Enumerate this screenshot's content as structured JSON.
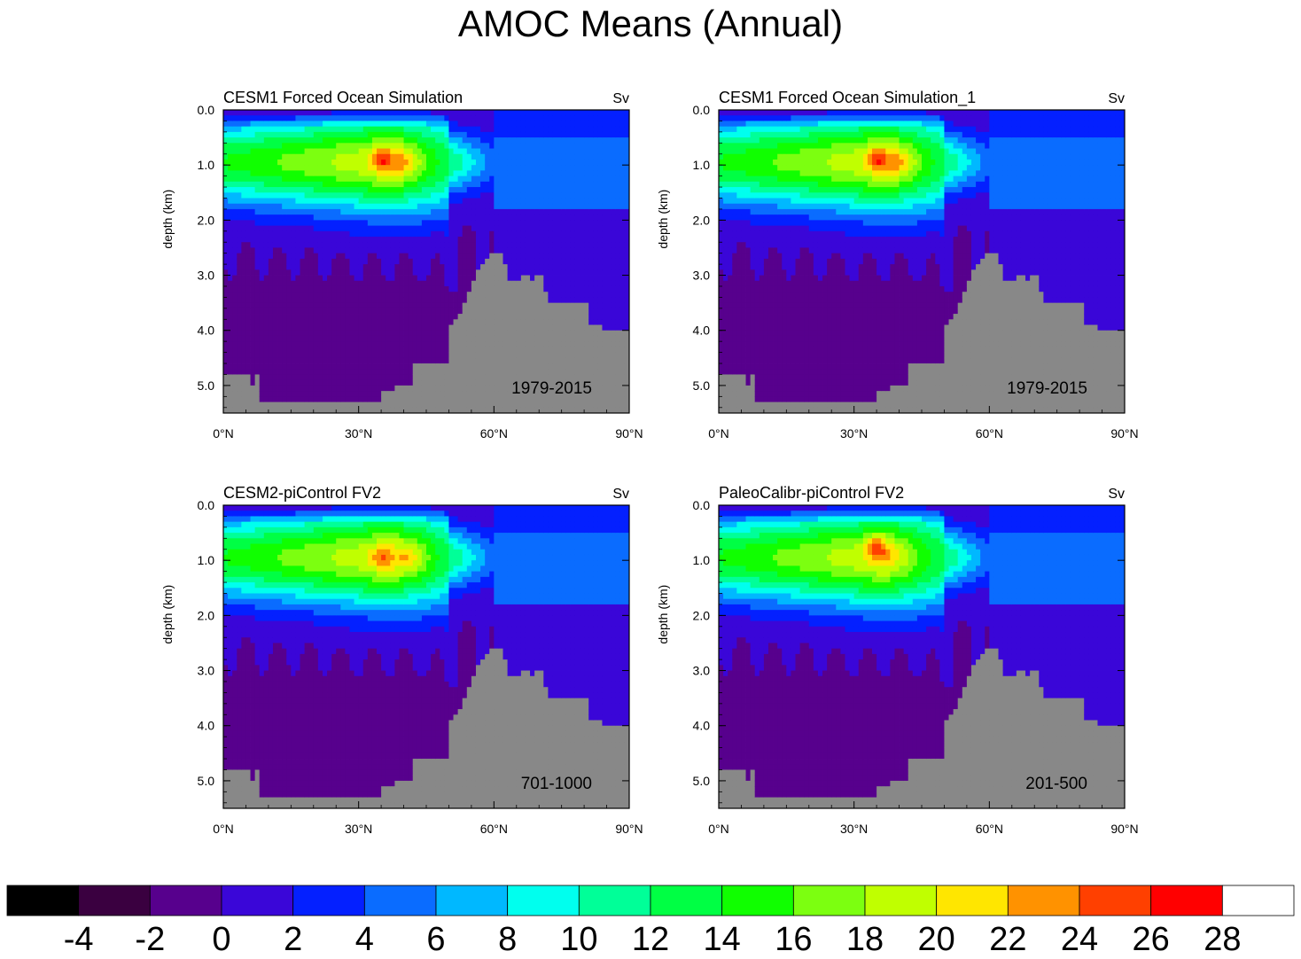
{
  "title": "AMOC Means (Annual)",
  "chart_data": [
    {
      "type": "heatmap",
      "title": "CESM1 Forced Ocean Simulation",
      "units": "Sv",
      "period": "1979-2015",
      "xlabel": "",
      "ylabel": "depth (km)",
      "x_ticks": [
        "0°N",
        "30°N",
        "60°N",
        "90°N"
      ],
      "y_ticks": [
        "0.0",
        "1.0",
        "2.0",
        "3.0",
        "4.0",
        "5.0"
      ],
      "xlim": [
        0,
        90
      ],
      "ylim": [
        0,
        5.5
      ],
      "max_cell": {
        "lat": 35,
        "depth_km": 0.9,
        "value": 25
      },
      "secondary_max": {
        "lat": 40,
        "depth_km": 0.95,
        "value": 23
      }
    },
    {
      "type": "heatmap",
      "title": "CESM1 Forced Ocean Simulation_1",
      "units": "Sv",
      "period": "1979-2015",
      "xlabel": "",
      "ylabel": "depth (km)",
      "x_ticks": [
        "0°N",
        "30°N",
        "60°N",
        "90°N"
      ],
      "y_ticks": [
        "0.0",
        "1.0",
        "2.0",
        "3.0",
        "4.0",
        "5.0"
      ],
      "xlim": [
        0,
        90
      ],
      "ylim": [
        0,
        5.5
      ],
      "max_cell": {
        "lat": 35,
        "depth_km": 0.9,
        "value": 25
      },
      "secondary_max": {
        "lat": 40,
        "depth_km": 0.95,
        "value": 23
      }
    },
    {
      "type": "heatmap",
      "title": "CESM2-piControl FV2",
      "units": "Sv",
      "period": "701-1000",
      "xlabel": "",
      "ylabel": "depth (km)",
      "x_ticks": [
        "0°N",
        "30°N",
        "60°N",
        "90°N"
      ],
      "y_ticks": [
        "0.0",
        "1.0",
        "2.0",
        "3.0",
        "4.0",
        "5.0"
      ],
      "xlim": [
        0,
        90
      ],
      "ylim": [
        0,
        5.5
      ],
      "max_cell": {
        "lat": 35,
        "depth_km": 0.95,
        "value": 23
      },
      "secondary_max": {
        "lat": 41,
        "depth_km": 0.95,
        "value": 23
      }
    },
    {
      "type": "heatmap",
      "title": "PaleoCalibr-piControl FV2",
      "units": "Sv",
      "period": "201-500",
      "xlabel": "",
      "ylabel": "depth (km)",
      "x_ticks": [
        "0°N",
        "30°N",
        "60°N",
        "90°N"
      ],
      "y_ticks": [
        "0.0",
        "1.0",
        "2.0",
        "3.0",
        "4.0",
        "5.0"
      ],
      "xlim": [
        0,
        90
      ],
      "ylim": [
        0,
        5.5
      ],
      "max_cell": {
        "lat": 35,
        "depth_km": 0.75,
        "value": 25
      },
      "secondary_max": {
        "lat": 38,
        "depth_km": 0.9,
        "value": 21
      }
    }
  ],
  "colorbar": {
    "labels": [
      "-4",
      "-2",
      "0",
      "2",
      "4",
      "6",
      "8",
      "10",
      "12",
      "14",
      "16",
      "18",
      "20",
      "22",
      "24",
      "26",
      "28"
    ],
    "colors": [
      "#000000",
      "#3a0040",
      "#57008d",
      "#3a06d8",
      "#0420ff",
      "#0a6cff",
      "#00b8ff",
      "#00ffee",
      "#00ff98",
      "#00ff44",
      "#10ff00",
      "#7cff10",
      "#c0ff00",
      "#ffe600",
      "#ff9200",
      "#ff4000",
      "#ff0000",
      "#ffffff"
    ],
    "land_color": "#888888"
  }
}
